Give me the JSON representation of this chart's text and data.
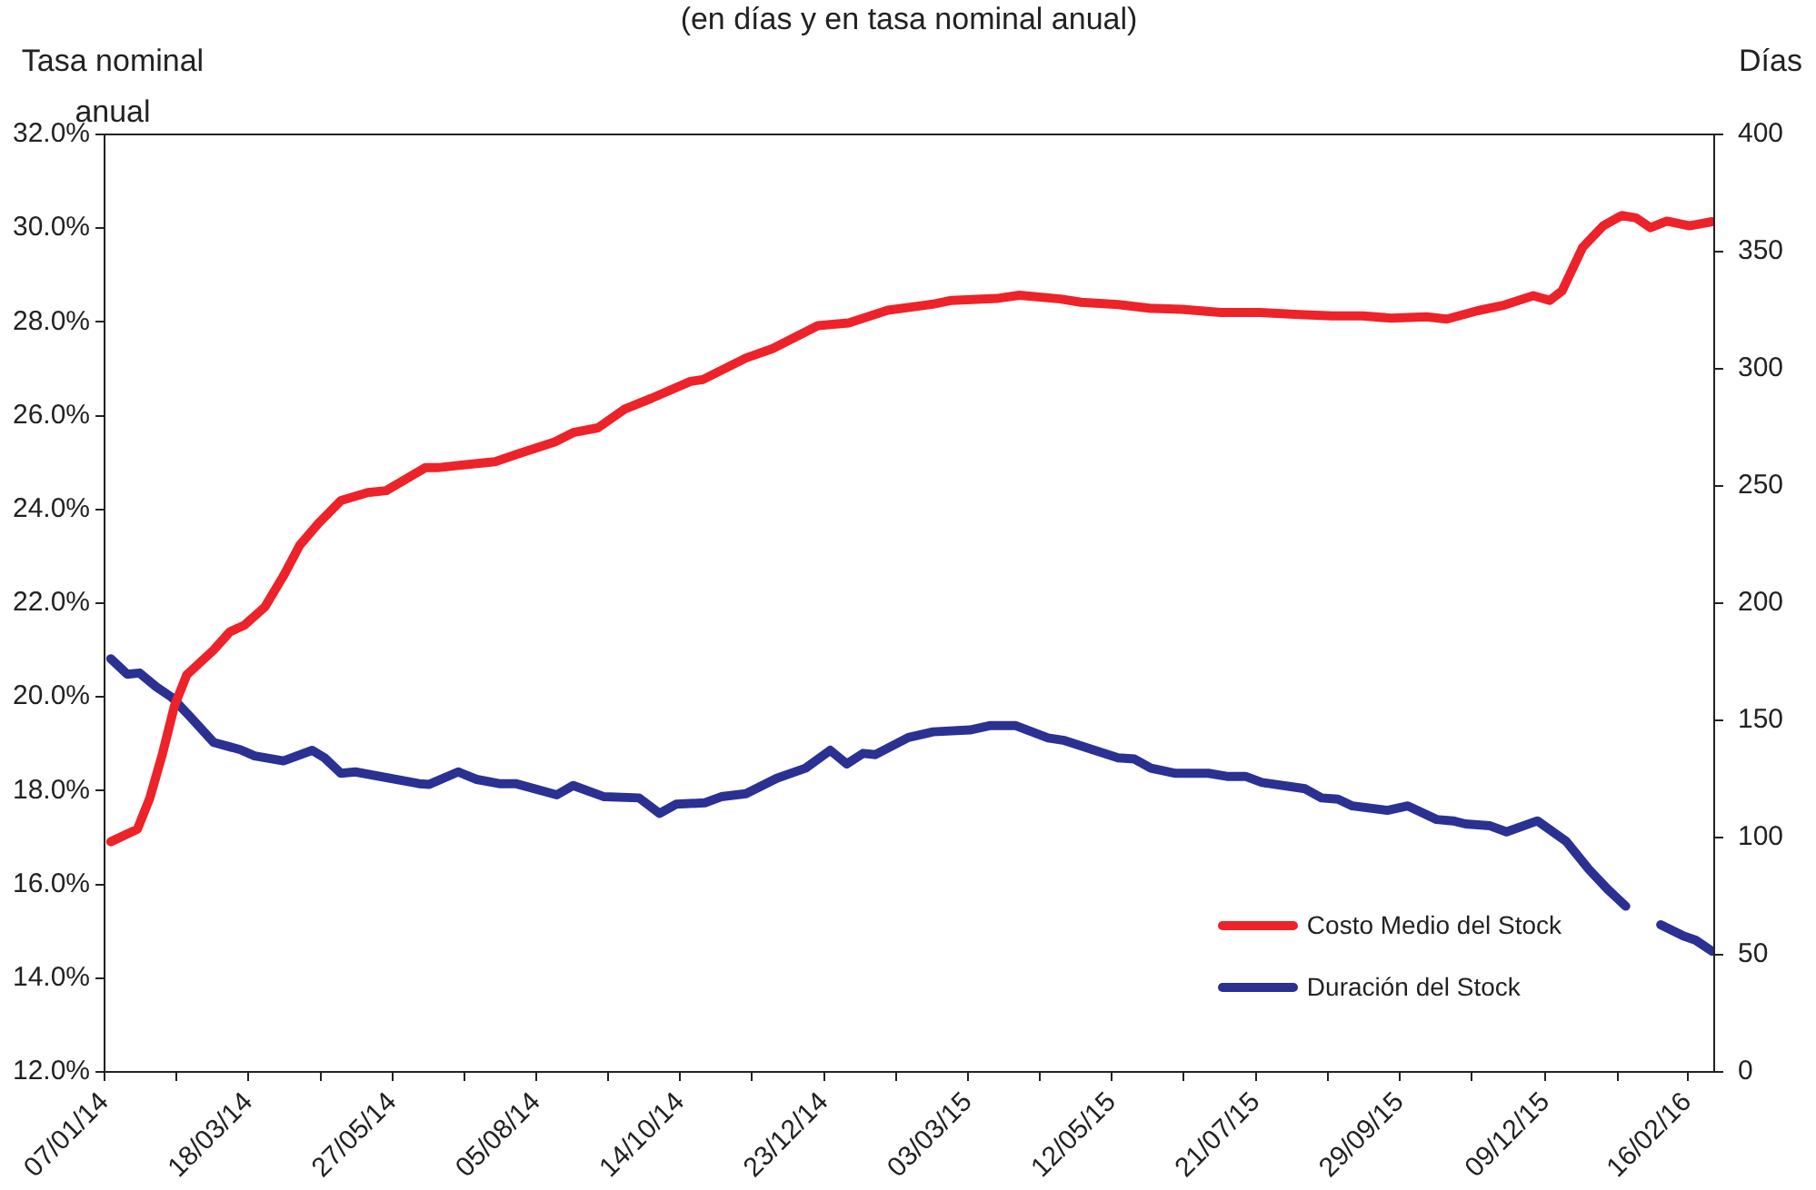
{
  "chart_data": {
    "type": "line",
    "subtitle": "(en días y en tasa nominal anual)",
    "ylabel": "Tasa nominal anual",
    "y2label": "Días",
    "xlim": [
      "2014-01-07",
      "2016-02-29"
    ],
    "xticks": [
      {
        "value": "2014-01-07",
        "label": "07/01/14"
      },
      {
        "value": "2014-02-11",
        "label": null
      },
      {
        "value": "2014-03-18",
        "label": "18/03/14"
      },
      {
        "value": "2014-04-22",
        "label": null
      },
      {
        "value": "2014-05-27",
        "label": "27/05/14"
      },
      {
        "value": "2014-07-01",
        "label": null
      },
      {
        "value": "2014-08-05",
        "label": "05/08/14"
      },
      {
        "value": "2014-09-09",
        "label": null
      },
      {
        "value": "2014-10-14",
        "label": "14/10/14"
      },
      {
        "value": "2014-11-18",
        "label": null
      },
      {
        "value": "2014-12-23",
        "label": "23/12/14"
      },
      {
        "value": "2015-01-27",
        "label": null
      },
      {
        "value": "2015-03-03",
        "label": "03/03/15"
      },
      {
        "value": "2015-04-07",
        "label": null
      },
      {
        "value": "2015-05-12",
        "label": "12/05/15"
      },
      {
        "value": "2015-06-16",
        "label": null
      },
      {
        "value": "2015-07-21",
        "label": "21/07/15"
      },
      {
        "value": "2015-08-25",
        "label": null
      },
      {
        "value": "2015-09-29",
        "label": "29/09/15"
      },
      {
        "value": "2015-11-03",
        "label": null
      },
      {
        "value": "2015-12-09",
        "label": "09/12/15"
      },
      {
        "value": "2016-01-13",
        "label": null
      },
      {
        "value": "2016-02-16",
        "label": "16/02/16"
      }
    ],
    "ylim": [
      12,
      32
    ],
    "yticks": [
      {
        "value": 12,
        "label": "12.0%"
      },
      {
        "value": 14,
        "label": "14.0%"
      },
      {
        "value": 16,
        "label": "16.0%"
      },
      {
        "value": 18,
        "label": "18.0%"
      },
      {
        "value": 20,
        "label": "20.0%"
      },
      {
        "value": 22,
        "label": "22.0%"
      },
      {
        "value": 24,
        "label": "24.0%"
      },
      {
        "value": 26,
        "label": "26.0%"
      },
      {
        "value": 28,
        "label": "28.0%"
      },
      {
        "value": 30,
        "label": "30.0%"
      },
      {
        "value": 32,
        "label": "32.0%"
      }
    ],
    "y2lim": [
      0,
      400
    ],
    "y2ticks": [
      0,
      50,
      100,
      150,
      200,
      250,
      300,
      350,
      400
    ],
    "grid": false,
    "legend": "bottom right",
    "marker": "none",
    "line_style": "solid",
    "series": [
      {
        "name": "Costo Medio del Stock",
        "color": "#ee2229",
        "x": [
          "2014-01-10",
          "2014-01-23",
          "2014-01-29",
          "2014-02-04",
          "2014-02-10",
          "2014-02-16",
          "2014-03-01",
          "2014-03-09",
          "2014-03-16",
          "2014-03-26",
          "2014-04-04",
          "2014-04-12",
          "2014-04-21",
          "2014-05-02",
          "2014-05-15",
          "2014-05-24",
          "2014-06-12",
          "2014-06-18",
          "2014-07-16",
          "2014-07-29",
          "2014-08-14",
          "2014-08-23",
          "2014-09-04",
          "2014-09-17",
          "2014-09-30",
          "2014-10-19",
          "2014-10-25",
          "2014-11-15",
          "2014-11-28",
          "2014-12-20",
          "2015-01-04",
          "2015-01-23",
          "2015-02-14",
          "2015-02-23",
          "2015-03-17",
          "2015-03-28",
          "2015-04-17",
          "2015-04-27",
          "2015-05-15",
          "2015-05-31",
          "2015-06-15",
          "2015-07-04",
          "2015-07-23",
          "2015-08-11",
          "2015-08-27",
          "2015-09-11",
          "2015-09-25",
          "2015-10-12",
          "2015-10-22",
          "2015-11-06",
          "2015-11-19",
          "2015-12-03",
          "2015-12-11",
          "2015-12-17",
          "2015-12-27",
          "2016-01-06",
          "2016-01-15",
          "2016-01-22",
          "2016-01-29",
          "2016-02-06",
          "2016-02-17",
          "2016-02-28"
        ],
        "values": [
          16.91,
          17.18,
          17.84,
          18.76,
          19.81,
          20.47,
          21.0,
          21.39,
          21.53,
          21.92,
          22.58,
          23.24,
          23.7,
          24.19,
          24.36,
          24.4,
          24.89,
          24.89,
          25.02,
          25.21,
          25.44,
          25.64,
          25.74,
          26.14,
          26.37,
          26.73,
          26.77,
          27.23,
          27.43,
          27.92,
          27.98,
          28.25,
          28.38,
          28.46,
          28.5,
          28.57,
          28.49,
          28.42,
          28.37,
          28.29,
          28.27,
          28.2,
          28.2,
          28.16,
          28.13,
          28.13,
          28.08,
          28.11,
          28.06,
          28.24,
          28.36,
          28.56,
          28.46,
          28.66,
          29.59,
          30.05,
          30.27,
          30.22,
          30.01,
          30.15,
          30.05,
          30.14
        ]
      },
      {
        "name": "Duración del Stock",
        "color": "#2b3192",
        "axis": "y2",
        "x": [
          "2014-01-10",
          "2014-01-18",
          "2014-01-24",
          "2014-02-01",
          "2014-02-09",
          "2014-02-18",
          "2014-03-01",
          "2014-03-14",
          "2014-03-21",
          "2014-04-04",
          "2014-04-18",
          "2014-04-24",
          "2014-05-02",
          "2014-05-09",
          "2014-06-09",
          "2014-06-14",
          "2014-06-28",
          "2014-07-07",
          "2014-07-18",
          "2014-07-26",
          "2014-08-15",
          "2014-08-23",
          "2014-09-07",
          "2014-09-24",
          "2014-10-04",
          "2014-10-12",
          "2014-10-26",
          "2014-11-03",
          "2014-11-15",
          "2014-11-30",
          "2014-12-14",
          "2014-12-26",
          "2015-01-03",
          "2015-01-11",
          "2015-01-17",
          "2015-02-02",
          "2015-02-14",
          "2015-03-04",
          "2015-03-14",
          "2015-03-26",
          "2015-04-11",
          "2015-04-19",
          "2015-05-15",
          "2015-05-23",
          "2015-05-31",
          "2015-06-12",
          "2015-06-28",
          "2015-07-07",
          "2015-07-16",
          "2015-07-24",
          "2015-08-14",
          "2015-08-22",
          "2015-08-30",
          "2015-09-06",
          "2015-09-23",
          "2015-10-03",
          "2015-10-17",
          "2015-10-25",
          "2015-10-31",
          "2015-11-12",
          "2015-11-20",
          "2015-12-05",
          "2015-12-19",
          "2015-12-30",
          "2016-01-08",
          "2016-01-17",
          "2016-01-25",
          "2016-02-03",
          "2016-02-14",
          "2016-02-20",
          "2016-02-28"
        ],
        "values": [
          176.3,
          169.7,
          170.2,
          164.4,
          159.6,
          151.2,
          140.6,
          137.5,
          134.8,
          132.7,
          137.2,
          134,
          127.4,
          128,
          123,
          122.7,
          128,
          124.8,
          123,
          123,
          118.2,
          122.2,
          117.4,
          116.9,
          110.3,
          114.2,
          114.8,
          117.4,
          118.7,
          125.3,
          129.6,
          137.2,
          131.4,
          135.9,
          135.4,
          142.7,
          145.1,
          145.9,
          147.8,
          147.8,
          142.5,
          141.4,
          134,
          133.5,
          129.6,
          127.4,
          127.4,
          126.1,
          126.1,
          123.5,
          120.8,
          116.9,
          116.4,
          113.5,
          111.6,
          113.5,
          107.7,
          107.1,
          105.8,
          105,
          102.4,
          107.1,
          98.4,
          86.5,
          78.1,
          70.7,
          null,
          62.8,
          58,
          56.2,
          51.5
        ]
      }
    ]
  }
}
